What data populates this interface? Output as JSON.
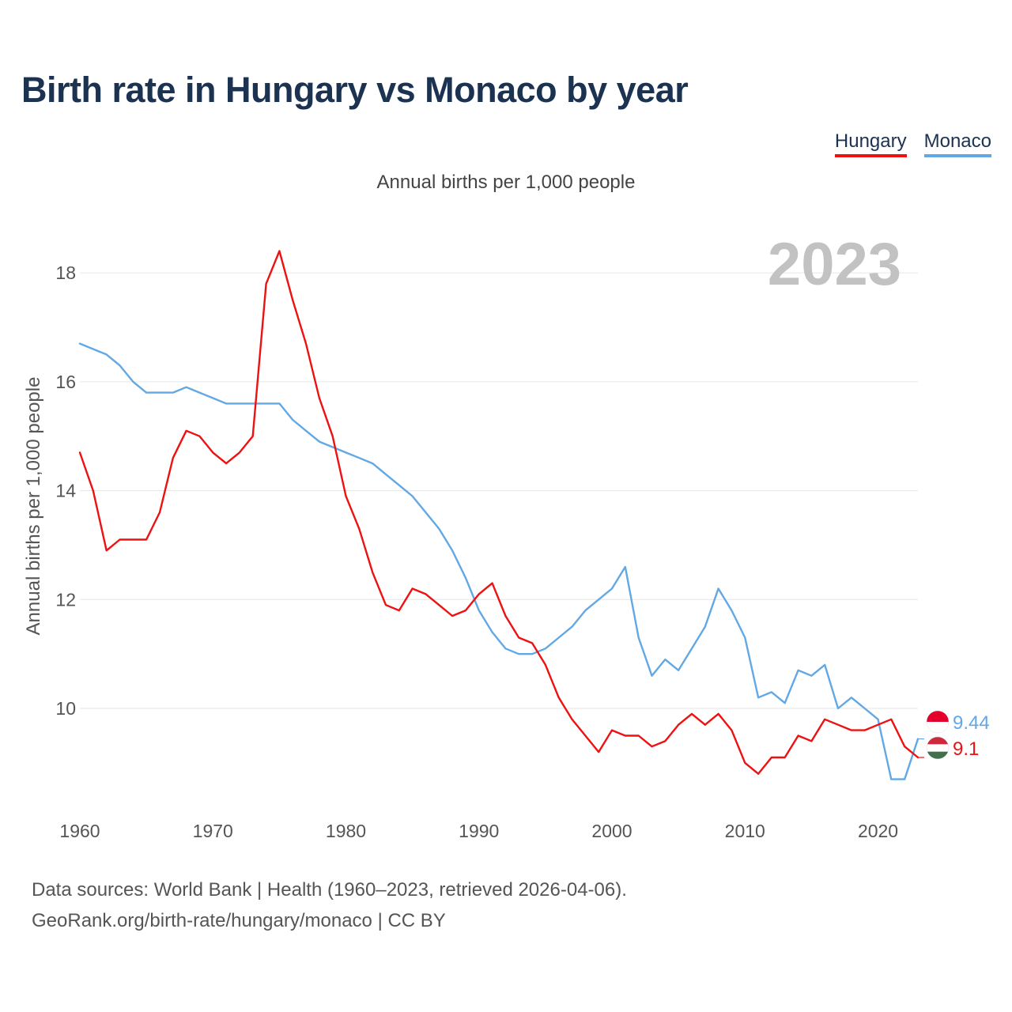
{
  "title": "Birth rate in Hungary vs Monaco by year",
  "legend": [
    {
      "name": "Hungary",
      "color": "#ee1111"
    },
    {
      "name": "Monaco",
      "color": "#62a8e5"
    }
  ],
  "year_label": "2023",
  "footer": {
    "line1": "Data sources: World Bank | Health (1960–2023, retrieved 2026-04-06).",
    "line2": "GeoRank.org/birth-rate/hungary/monaco | CC BY"
  },
  "chart_data": {
    "type": "line",
    "title": "Birth rate in Hungary vs Monaco by year",
    "subtitle": "Annual births per 1,000 people",
    "xlabel": "",
    "ylabel": "Annual births per 1,000 people",
    "xlim": [
      1960,
      2023
    ],
    "ylim": [
      8.2,
      18.8
    ],
    "x_ticks": [
      1960,
      1970,
      1980,
      1990,
      2000,
      2010,
      2020
    ],
    "y_ticks": [
      10,
      12,
      14,
      16,
      18
    ],
    "grid": true,
    "legend_position": "top-right",
    "x": [
      1960,
      1961,
      1962,
      1963,
      1964,
      1965,
      1966,
      1967,
      1968,
      1969,
      1970,
      1971,
      1972,
      1973,
      1974,
      1975,
      1976,
      1977,
      1978,
      1979,
      1980,
      1981,
      1982,
      1983,
      1984,
      1985,
      1986,
      1987,
      1988,
      1989,
      1990,
      1991,
      1992,
      1993,
      1994,
      1995,
      1996,
      1997,
      1998,
      1999,
      2000,
      2001,
      2002,
      2003,
      2004,
      2005,
      2006,
      2007,
      2008,
      2009,
      2010,
      2011,
      2012,
      2013,
      2014,
      2015,
      2016,
      2017,
      2018,
      2019,
      2020,
      2021,
      2022,
      2023
    ],
    "series": [
      {
        "name": "Hungary",
        "color": "#ee1111",
        "end_label": "9.1",
        "values": [
          14.7,
          14.0,
          12.9,
          13.1,
          13.1,
          13.1,
          13.6,
          14.6,
          15.1,
          15.0,
          14.7,
          14.5,
          14.7,
          15.0,
          17.8,
          18.4,
          17.5,
          16.7,
          15.7,
          15.0,
          13.9,
          13.3,
          12.5,
          11.9,
          11.8,
          12.2,
          12.1,
          11.9,
          11.7,
          11.8,
          12.1,
          12.3,
          11.7,
          11.3,
          11.2,
          10.8,
          10.2,
          9.8,
          9.5,
          9.2,
          9.6,
          9.5,
          9.5,
          9.3,
          9.4,
          9.7,
          9.9,
          9.7,
          9.9,
          9.6,
          9.0,
          8.8,
          9.1,
          9.1,
          9.5,
          9.4,
          9.8,
          9.7,
          9.6,
          9.6,
          9.7,
          9.8,
          9.3,
          9.1
        ]
      },
      {
        "name": "Monaco",
        "color": "#62a8e5",
        "end_label": "9.44",
        "values": [
          16.7,
          16.6,
          16.5,
          16.3,
          16.0,
          15.8,
          15.8,
          15.8,
          15.9,
          15.8,
          15.7,
          15.6,
          15.6,
          15.6,
          15.6,
          15.6,
          15.3,
          15.1,
          14.9,
          14.8,
          14.7,
          14.6,
          14.5,
          14.3,
          14.1,
          13.9,
          13.6,
          13.3,
          12.9,
          12.4,
          11.8,
          11.4,
          11.1,
          11.0,
          11.0,
          11.1,
          11.3,
          11.5,
          11.8,
          12.0,
          12.2,
          12.6,
          11.3,
          10.6,
          10.9,
          10.7,
          11.1,
          11.5,
          12.2,
          11.8,
          11.3,
          10.2,
          10.3,
          10.1,
          10.7,
          10.6,
          10.8,
          10.0,
          10.2,
          10.0,
          9.8,
          8.7,
          8.7,
          9.44
        ]
      }
    ]
  }
}
